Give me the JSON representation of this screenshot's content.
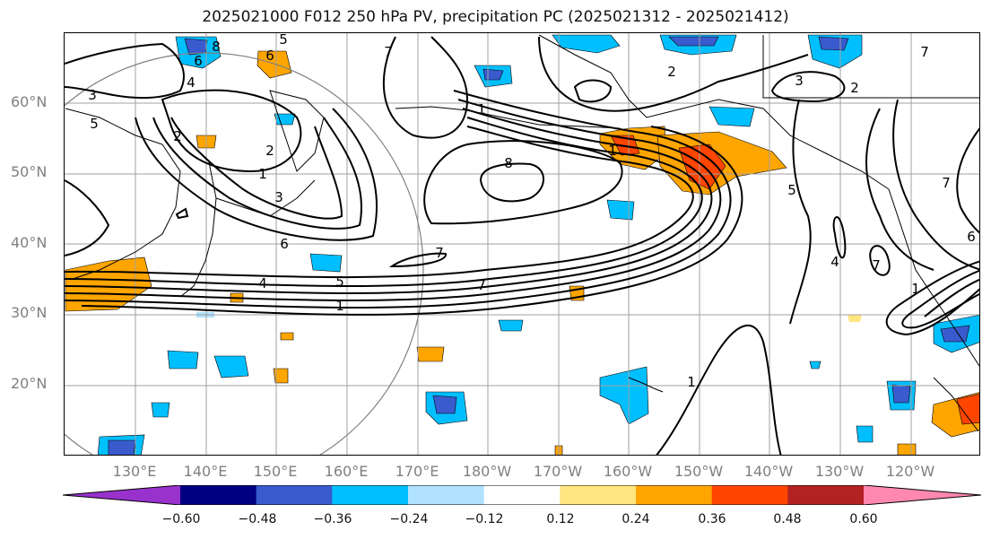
{
  "title": "2025021000 F012 250 hPa PV, precipitation PC (2025021312 - 2025021412)",
  "map": {
    "lat_labels": [
      "60°N",
      "50°N",
      "40°N",
      "30°N",
      "20°N"
    ],
    "lon_labels": [
      "130°E",
      "140°E",
      "150°E",
      "160°E",
      "170°E",
      "180°W",
      "170°W",
      "160°W",
      "150°W",
      "140°W",
      "130°W",
      "120°W"
    ],
    "contour_labels": [
      "3",
      "5",
      "6",
      "8",
      "5",
      "6",
      "4",
      "7",
      "1",
      "2",
      "1",
      "8",
      "2",
      "1",
      "3",
      "6",
      "4",
      "5",
      "7",
      "7",
      "1",
      "1",
      "2",
      "3",
      "2",
      "5",
      "7",
      "4",
      "7",
      "1",
      "6",
      "7"
    ],
    "colors": {
      "contour": "#000000",
      "grid": "#a0a0a0",
      "coast": "#000000"
    }
  },
  "colorbar": {
    "ticks": [
      "−0.60",
      "−0.48",
      "−0.36",
      "−0.24",
      "−0.12",
      "0.12",
      "0.24",
      "0.36",
      "0.48",
      "0.60"
    ],
    "colors": [
      "#9932cc",
      "#000080",
      "#3a5bcd",
      "#00bfff",
      "#b0e2ff",
      "#ffffff",
      "#ffe680",
      "#ffa500",
      "#ff4500",
      "#b22222",
      "#ff88b0"
    ]
  }
}
